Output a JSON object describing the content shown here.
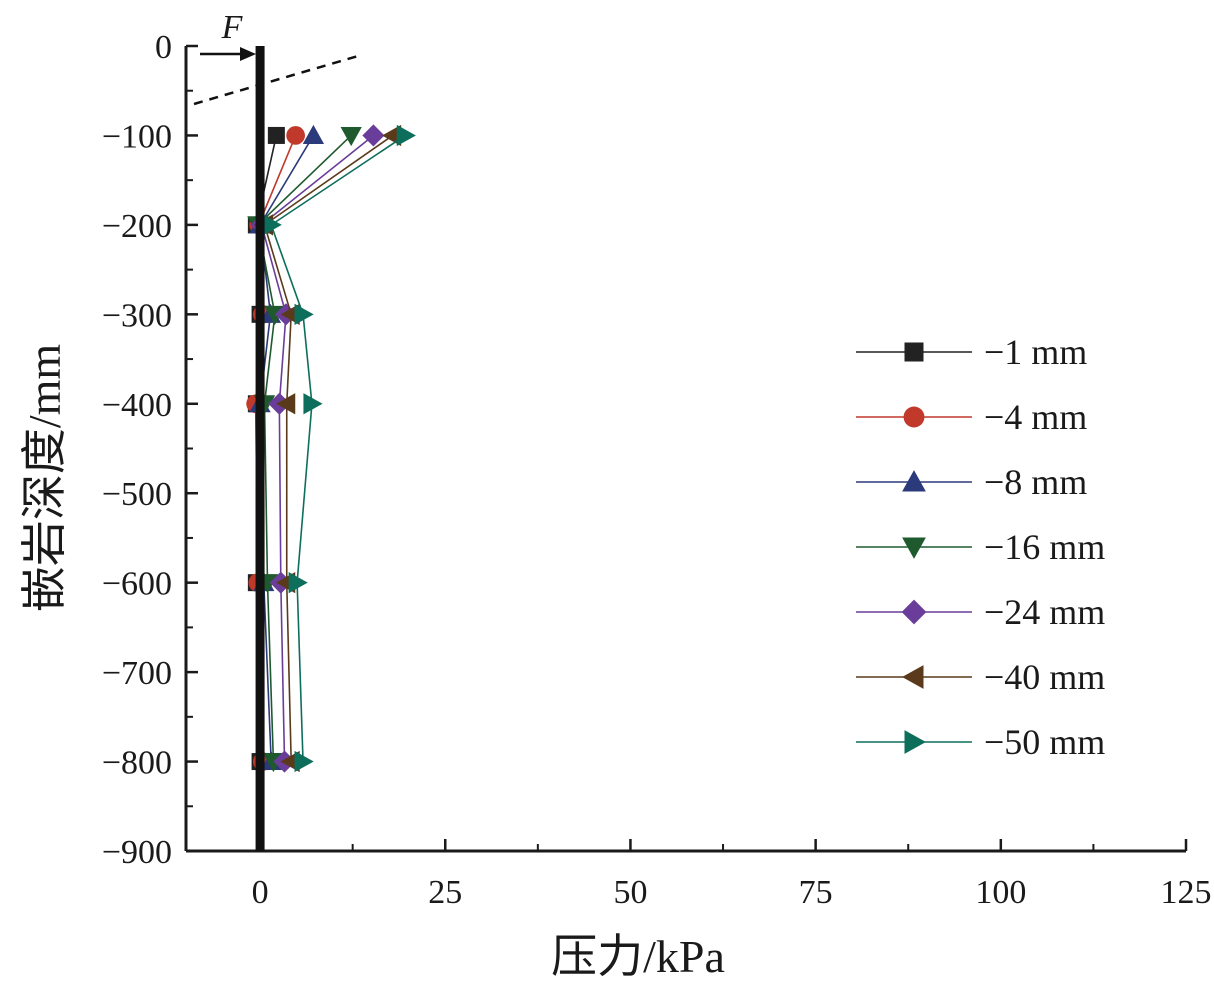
{
  "chart_data": {
    "type": "line",
    "xlabel": "压力/kPa",
    "ylabel": "嵌岩深度/mm",
    "xlim": [
      -10,
      125
    ],
    "ylim": [
      -900,
      0
    ],
    "x_ticks": [
      "0",
      "25",
      "50",
      "75",
      "100",
      "125"
    ],
    "y_ticks": [
      "0",
      "−100",
      "−200",
      "−300",
      "−400",
      "−500",
      "−600",
      "−700",
      "−800",
      "−900"
    ],
    "grid": false,
    "legend_position": "right",
    "force_label": "F",
    "depths": [
      -100,
      -200,
      -300,
      -400,
      -600,
      -800
    ],
    "series": [
      {
        "name": "−1 mm",
        "marker": "square",
        "color": "#222222",
        "x": [
          2.2,
          -0.5,
          0.0,
          -0.5,
          -0.5,
          0.0
        ]
      },
      {
        "name": "−4 mm",
        "marker": "circle",
        "color": "#c0392b",
        "x": [
          4.8,
          -0.2,
          0.3,
          -0.6,
          -0.3,
          0.3
        ]
      },
      {
        "name": "−8 mm",
        "marker": "tri-up",
        "color": "#2b3a7a",
        "x": [
          7.2,
          0.0,
          1.4,
          0.0,
          0.5,
          1.5
        ]
      },
      {
        "name": "−16 mm",
        "marker": "tri-down",
        "color": "#1f5a2e",
        "x": [
          12.3,
          -0.3,
          2.0,
          0.6,
          1.0,
          1.8
        ]
      },
      {
        "name": "−24 mm",
        "marker": "diamond",
        "color": "#6a3d9a",
        "x": [
          15.3,
          0.2,
          3.5,
          2.6,
          2.8,
          3.3
        ]
      },
      {
        "name": "−40 mm",
        "marker": "tri-left",
        "color": "#5a3a1a",
        "x": [
          17.9,
          0.6,
          4.2,
          3.6,
          3.6,
          4.2
        ]
      },
      {
        "name": "−50 mm",
        "marker": "tri-right",
        "color": "#0e6e5c",
        "x": [
          19.6,
          1.5,
          5.8,
          7.0,
          5.0,
          5.8
        ]
      }
    ]
  }
}
